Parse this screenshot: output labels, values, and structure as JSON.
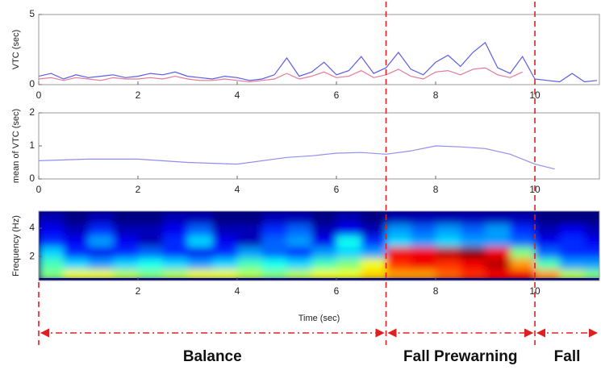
{
  "charts": [
    {
      "type": "line",
      "ylabel": "VTC (sec)",
      "xlim": [
        0,
        11.3
      ],
      "ylim": [
        0,
        5
      ],
      "xticks": [
        0,
        2,
        4,
        6,
        8,
        10
      ],
      "yticks": [
        0,
        5
      ],
      "x": [
        0,
        0.25,
        0.5,
        0.75,
        1,
        1.25,
        1.5,
        1.75,
        2,
        2.25,
        2.5,
        2.75,
        3,
        3.25,
        3.5,
        3.75,
        4,
        4.25,
        4.5,
        4.75,
        5,
        5.25,
        5.5,
        5.75,
        6,
        6.25,
        6.5,
        6.75,
        7,
        7.25,
        7.5,
        7.75,
        8,
        8.25,
        8.5,
        8.75,
        9,
        9.25,
        9.5,
        9.75,
        10,
        10.25,
        10.5,
        10.75,
        11,
        11.25
      ],
      "series": [
        {
          "color": "#5b5be6",
          "values": [
            0.6,
            0.8,
            0.4,
            0.7,
            0.5,
            0.6,
            0.7,
            0.5,
            0.6,
            0.8,
            0.7,
            0.9,
            0.6,
            0.5,
            0.4,
            0.6,
            0.5,
            0.3,
            0.4,
            0.7,
            1.9,
            0.6,
            0.9,
            1.6,
            0.7,
            1.0,
            2.0,
            0.8,
            1.2,
            2.3,
            1.1,
            0.7,
            1.6,
            2.1,
            1.3,
            2.3,
            3.0,
            1.2,
            0.8,
            2.0,
            0.4,
            0.3,
            0.2,
            0.8,
            0.2,
            0.3
          ]
        },
        {
          "color": "#e07a9a",
          "values": [
            0.4,
            0.5,
            0.3,
            0.5,
            0.4,
            0.3,
            0.5,
            0.4,
            0.4,
            0.5,
            0.4,
            0.6,
            0.4,
            0.3,
            0.3,
            0.4,
            0.3,
            0.2,
            0.3,
            0.4,
            0.8,
            0.4,
            0.6,
            0.9,
            0.5,
            0.6,
            1.0,
            0.5,
            0.7,
            1.1,
            0.6,
            0.4,
            0.9,
            1.0,
            0.7,
            1.1,
            1.2,
            0.7,
            0.5,
            0.9,
            null,
            null,
            null,
            null,
            null,
            null
          ]
        }
      ]
    },
    {
      "type": "line",
      "ylabel": "mean of VTC (sec)",
      "xlim": [
        0,
        11.3
      ],
      "ylim": [
        0,
        2
      ],
      "xticks": [
        0,
        2,
        4,
        6,
        8,
        10
      ],
      "yticks": [
        0,
        1,
        2
      ],
      "x": [
        0,
        1,
        2,
        3,
        4,
        5,
        5.5,
        6,
        6.5,
        7,
        7.5,
        8,
        8.5,
        9,
        9.5,
        10,
        10.4
      ],
      "series": [
        {
          "color": "#8f8ff0",
          "values": [
            0.55,
            0.6,
            0.6,
            0.5,
            0.45,
            0.65,
            0.7,
            0.78,
            0.8,
            0.75,
            0.85,
            1.0,
            0.97,
            0.92,
            0.75,
            0.45,
            0.3
          ]
        }
      ]
    },
    {
      "type": "heatmap",
      "ylabel": "Frequency (Hz)",
      "xlabel": "Time (sec)",
      "xlim": [
        0,
        11.3
      ],
      "ylim": [
        0.3,
        5.2
      ],
      "xticks": [
        2,
        4,
        6,
        8,
        10
      ],
      "yticks": [
        2,
        4
      ],
      "colormap": "jet",
      "x": [
        0.25,
        0.75,
        1.25,
        1.75,
        2.25,
        2.75,
        3.25,
        3.75,
        4.25,
        4.75,
        5.25,
        5.75,
        6.25,
        6.75,
        7.25,
        7.75,
        8.25,
        8.75,
        9.25,
        9.75,
        10.25,
        10.75,
        11.25
      ],
      "y": [
        0.7,
        1.5,
        2.3,
        3.1,
        3.9,
        4.7
      ],
      "z": [
        [
          0.5,
          0.6,
          0.6,
          0.55,
          0.5,
          0.55,
          0.6,
          0.6,
          0.55,
          0.5,
          0.55,
          0.6,
          0.6,
          0.65,
          0.7,
          0.7,
          0.75,
          0.8,
          0.85,
          0.85,
          0.7,
          0.55,
          0.5
        ],
        [
          0.45,
          0.35,
          0.3,
          0.35,
          0.4,
          0.35,
          0.3,
          0.35,
          0.45,
          0.4,
          0.35,
          0.45,
          0.5,
          0.6,
          0.8,
          0.85,
          0.8,
          0.85,
          0.9,
          0.7,
          0.45,
          0.3,
          0.3
        ],
        [
          0.35,
          0.2,
          0.15,
          0.2,
          0.25,
          0.2,
          0.15,
          0.2,
          0.3,
          0.25,
          0.2,
          0.3,
          0.35,
          0.3,
          0.85,
          0.85,
          0.9,
          0.95,
          0.85,
          0.5,
          0.25,
          0.2,
          0.2
        ],
        [
          0.2,
          0.15,
          0.3,
          0.15,
          0.1,
          0.2,
          0.35,
          0.15,
          0.1,
          0.25,
          0.3,
          0.15,
          0.4,
          0.2,
          0.35,
          0.3,
          0.35,
          0.3,
          0.3,
          0.25,
          0.15,
          0.2,
          0.15
        ],
        [
          0.15,
          0.1,
          0.2,
          0.1,
          0.1,
          0.15,
          0.25,
          0.1,
          0.1,
          0.2,
          0.25,
          0.1,
          0.15,
          0.1,
          0.3,
          0.25,
          0.3,
          0.25,
          0.3,
          0.2,
          0.1,
          0.15,
          0.1
        ],
        [
          0.1,
          0.05,
          0.1,
          0.05,
          0.05,
          0.1,
          0.1,
          0.05,
          0.05,
          0.1,
          0.1,
          0.05,
          0.1,
          0.05,
          0.1,
          0.1,
          0.1,
          0.1,
          0.1,
          0.1,
          0.05,
          0.05,
          0.05
        ]
      ]
    }
  ],
  "segments": [
    {
      "label": "Balance",
      "start": 0,
      "end": 7
    },
    {
      "label": "Fall Prewarning",
      "start": 7,
      "end": 10
    },
    {
      "label": "Fall",
      "start": 10,
      "end": 11.3
    }
  ]
}
